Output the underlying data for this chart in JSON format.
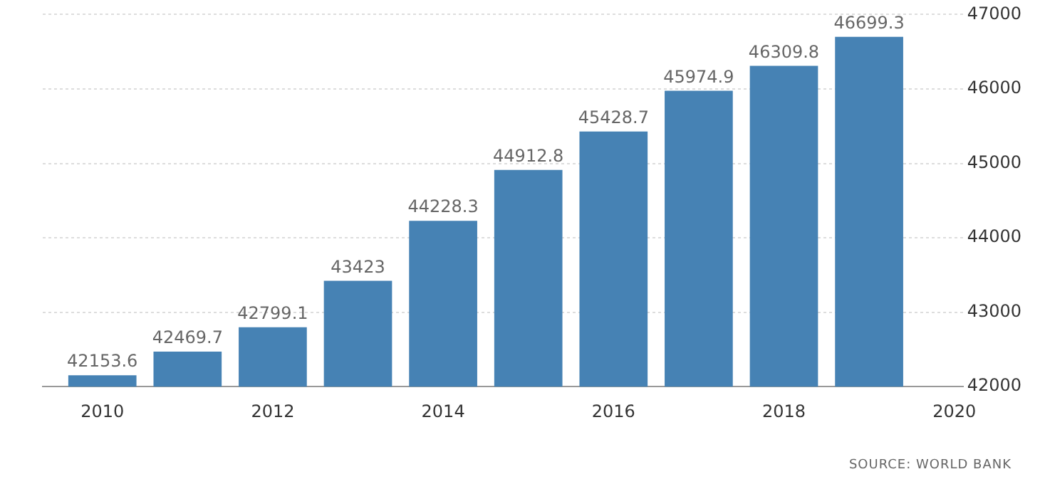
{
  "chart_data": {
    "type": "bar",
    "x": [
      2010,
      2011,
      2012,
      2013,
      2014,
      2015,
      2016,
      2017,
      2018,
      2019
    ],
    "values": [
      42153.6,
      42469.7,
      42799.1,
      43423,
      44228.3,
      44912.8,
      45428.7,
      45974.9,
      46309.8,
      46699.3
    ],
    "color": "#4682b4",
    "xlim": [
      2009.3,
      2020.1
    ],
    "xticks": [
      2010,
      2012,
      2014,
      2016,
      2018,
      2020
    ],
    "ylim": [
      42000,
      47000
    ],
    "yticks": [
      42000,
      43000,
      44000,
      45000,
      46000,
      47000
    ],
    "grid": "y",
    "data_labels": true,
    "annotations": [
      "SOURCE: WORLD BANK"
    ]
  }
}
